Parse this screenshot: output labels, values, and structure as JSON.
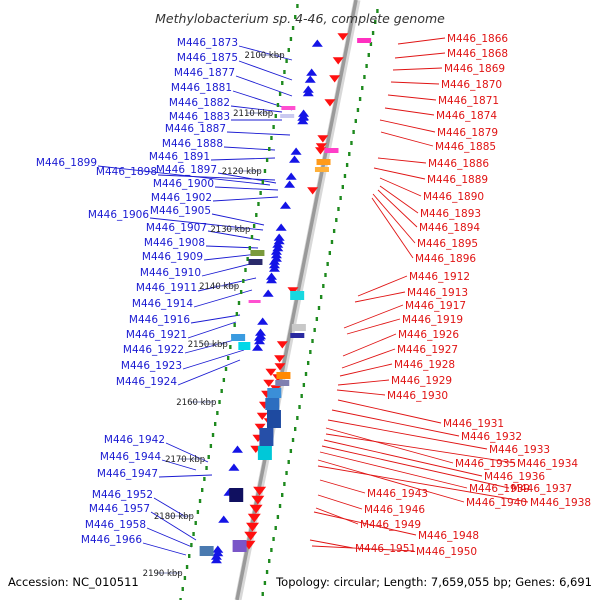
{
  "title": "Methylobacterium sp. 4-46, complete genome",
  "footer": {
    "accession": "Accession: NC_010511",
    "topology": "Topology: circular; Length: 7,659,055 bp; Genes: 6,691"
  },
  "colors": {
    "forward_labels": "#1a1ad2",
    "reverse_labels": "#e01414",
    "backbone": "#9a9a9a",
    "tick": "#1e8a1e"
  },
  "kbp_ticks": [
    "2100 kbp",
    "2110 kbp",
    "2120 kbp",
    "2130 kbp",
    "2140 kbp",
    "2150 kbp",
    "2160 kbp",
    "2170 kbp",
    "2180 kbp",
    "2190 kbp"
  ],
  "left_labels": [
    "M446_1873",
    "M446_1875",
    "M446_1877",
    "M446_1881",
    "M446_1882",
    "M446_1883",
    "M446_1887",
    "M446_1888",
    "M446_1891",
    "M446_1899",
    "M446_1898",
    "M446_1897",
    "M446_1900",
    "M446_1902",
    "M446_1905",
    "M446_1906",
    "M446_1907",
    "M446_1908",
    "M446_1909",
    "M446_1910",
    "M446_1911",
    "M446_1914",
    "M446_1916",
    "M446_1921",
    "M446_1922",
    "M446_1923",
    "M446_1924",
    "M446_1942",
    "M446_1944",
    "M446_1947",
    "M446_1952",
    "M446_1957",
    "M446_1958",
    "M446_1966"
  ],
  "right_labels": [
    "M446_1866",
    "M446_1868",
    "M446_1869",
    "M446_1870",
    "M446_1871",
    "M446_1874",
    "M446_1879",
    "M446_1885",
    "M446_1886",
    "M446_1889",
    "M446_1890",
    "M446_1893",
    "M446_1894",
    "M446_1895",
    "M446_1896",
    "M446_1912",
    "M446_1913",
    "M446_1917",
    "M446_1919",
    "M446_1926",
    "M446_1927",
    "M446_1928",
    "M446_1929",
    "M446_1930",
    "M446_1931",
    "M446_1932",
    "M446_1933",
    "M446_1935",
    "M446_1934",
    "M446_1936",
    "M446_1937",
    "M446_1939",
    "M446_1940",
    "M446_1938",
    "M446_1943",
    "M446_1946",
    "M446_1949",
    "M446_1948",
    "M446_1951",
    "M446_1950"
  ]
}
